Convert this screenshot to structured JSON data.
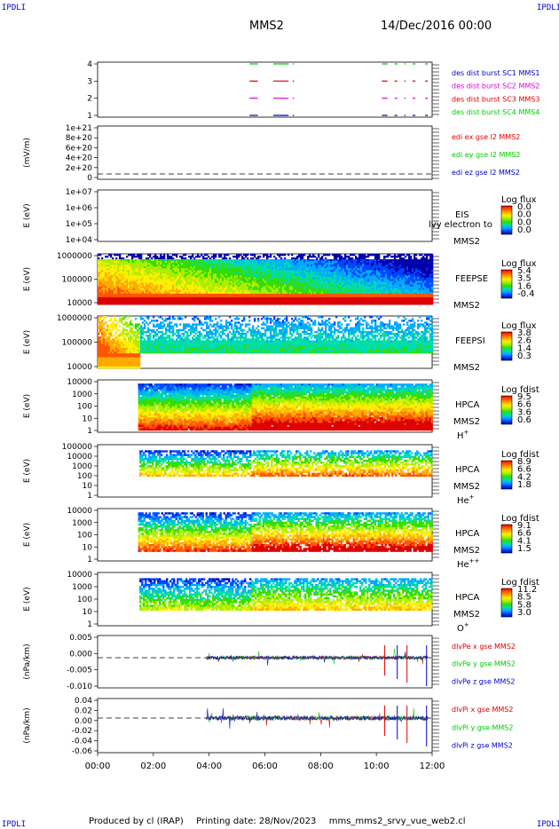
{
  "header": {
    "corner_tl": "IPDLI",
    "corner_tr": "IPDLI",
    "corner_bl": "IPDLI",
    "corner_br": "IPDLI",
    "spacecraft": "MMS2",
    "date": "14/Dec/2016 00:00"
  },
  "footer": {
    "produced_by": "Produced by cl (IRAP)",
    "printing_date": "Printing date: 28/Nov/2023",
    "file_name": "mms_mms2_srvy_vue_web2.cl"
  },
  "colors": {
    "red": "#dd0000",
    "green": "#00cc00",
    "blue": "#0000cc",
    "magenta": "#dd00dd",
    "spectrogram_palette": [
      "#0000aa",
      "#0044ff",
      "#00aaff",
      "#00ddaa",
      "#33dd00",
      "#aaee00",
      "#ffee00",
      "#ffaa00",
      "#ff5500",
      "#dd0000"
    ]
  },
  "chart_data": [
    {
      "type": "line",
      "panel": "burst",
      "y_ticks": [
        "4",
        "3",
        "2",
        "1"
      ],
      "series": [
        {
          "name": "des dist burst SC1 MMS1",
          "color": "#0000cc",
          "level": 1
        },
        {
          "name": "des dist burst SC2 MMS2",
          "color": "#dd00dd",
          "level": 2
        },
        {
          "name": "des dist burst SC3 MMS3",
          "color": "#dd0000",
          "level": 3
        },
        {
          "name": "des dist burst SC4 MMS4",
          "color": "#00cc00",
          "level": 4
        }
      ],
      "segments_hours": [
        [
          5.45,
          5.75
        ],
        [
          6.3,
          6.85
        ],
        [
          7.0,
          7.05
        ],
        [
          10.2,
          10.4
        ],
        [
          10.65,
          10.75
        ],
        [
          11.0,
          11.05
        ],
        [
          11.3,
          11.4
        ],
        [
          11.75,
          11.85
        ]
      ]
    },
    {
      "type": "line",
      "panel": "edi",
      "ylabel": "(mV/m)",
      "y_ticks": [
        "1e+21",
        "8e+20",
        "6e+20",
        "4e+20",
        "2e+20",
        "0"
      ],
      "series": [
        {
          "name": "edi ex gse l2 MMS2",
          "color": "#dd0000"
        },
        {
          "name": "edi ey gse l2 MMS2",
          "color": "#00cc00"
        },
        {
          "name": "edi ez gse l2 MMS2",
          "color": "#0000cc"
        }
      ]
    },
    {
      "type": "heatmap",
      "panel": "eis",
      "ylabel": "E (eV)",
      "y_ticks": [
        "1e+07",
        "1e+06",
        "1e+05",
        "1e+04"
      ],
      "title": "EIS",
      "subtitle": "MMS2",
      "overlay_text": "lvy electron to",
      "colorbar": {
        "label": "Log flux",
        "ticks": [
          "0.0",
          "0.0",
          "0.0",
          "0.0"
        ]
      }
    },
    {
      "type": "heatmap",
      "panel": "feepse",
      "ylabel": "E (eV)",
      "y_ticks": [
        "1000000",
        "100000",
        "10000"
      ],
      "title": "FEEPSE",
      "subtitle": "MMS2",
      "colorbar": {
        "label": "Log flux",
        "ticks": [
          "5.4",
          "3.5",
          "1.6",
          "-0.4"
        ]
      }
    },
    {
      "type": "heatmap",
      "panel": "feepsi",
      "ylabel": "E (eV)",
      "y_ticks": [
        "1000000",
        "100000",
        "10000"
      ],
      "title": "FEEPSI",
      "subtitle": "MMS2",
      "colorbar": {
        "label": "Log flux",
        "ticks": [
          "3.8",
          "2.6",
          "1.4",
          "0.3"
        ]
      }
    },
    {
      "type": "heatmap",
      "panel": "hpca_h",
      "ylabel": "E (eV)",
      "y_ticks": [
        "10000",
        "1000",
        "100",
        "10",
        "1"
      ],
      "title": "HPCA",
      "subtitle": "MMS2",
      "species": "H",
      "charge": "+",
      "colorbar": {
        "label": "Log fdist",
        "ticks": [
          "9.5",
          "6.6",
          "3.6",
          "0.6"
        ]
      }
    },
    {
      "type": "heatmap",
      "panel": "hpca_he1",
      "ylabel": "E (eV)",
      "y_ticks": [
        "100000",
        "10000",
        "1000",
        "100",
        "10",
        "1"
      ],
      "title": "HPCA",
      "subtitle": "MMS2",
      "species": "He",
      "charge": "+",
      "colorbar": {
        "label": "Log fdist",
        "ticks": [
          "8.9",
          "6.6",
          "4.2",
          "1.8"
        ]
      }
    },
    {
      "type": "heatmap",
      "panel": "hpca_he2",
      "ylabel": "E (eV)",
      "y_ticks": [
        "10000",
        "1000",
        "100",
        "10",
        "1"
      ],
      "title": "HPCA",
      "subtitle": "MMS2",
      "species": "He",
      "charge": "++",
      "colorbar": {
        "label": "Log fdist",
        "ticks": [
          "9.1",
          "6.6",
          "4.1",
          "1.5"
        ]
      }
    },
    {
      "type": "heatmap",
      "panel": "hpca_o",
      "ylabel": "E (eV)",
      "y_ticks": [
        "10000",
        "1000",
        "100",
        "10",
        "1"
      ],
      "title": "HPCA",
      "subtitle": "MMS2",
      "species": "O",
      "charge": "+",
      "colorbar": {
        "label": "Log fdist",
        "ticks": [
          "11.2",
          "8.5",
          "5.8",
          "3.0"
        ]
      }
    },
    {
      "type": "line",
      "panel": "dlvpe",
      "ylabel": "(nPa/km)",
      "y_ticks": [
        "0.005",
        "0.000",
        "-0.005",
        "-0.010"
      ],
      "series": [
        {
          "name": "dlvPe x gse MMS2",
          "color": "#dd0000"
        },
        {
          "name": "dlvPe y gse MMS2",
          "color": "#00cc00"
        },
        {
          "name": "dlvPe z gse MMS2",
          "color": "#0000cc"
        }
      ]
    },
    {
      "type": "line",
      "panel": "dlvpi",
      "ylabel": "(nPa/km)",
      "y_ticks": [
        "0.04",
        "0.02",
        "0.00",
        "-0.02",
        "-0.04",
        "-0.06"
      ],
      "series": [
        {
          "name": "dlvPi x gse MMS2",
          "color": "#dd0000"
        },
        {
          "name": "dlvPi y gse MMS2",
          "color": "#00cc00"
        },
        {
          "name": "dlvPi z gse MMS2",
          "color": "#0000cc"
        }
      ]
    }
  ],
  "x_axis": {
    "ticks": [
      "00:00",
      "02:00",
      "04:00",
      "06:00",
      "08:00",
      "10:00",
      "12:00"
    ],
    "range_hours": [
      0,
      12
    ]
  }
}
